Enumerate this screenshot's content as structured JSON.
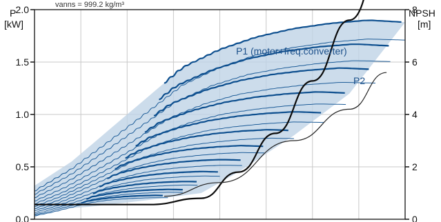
{
  "chart_data": {
    "type": "line",
    "top_note": "ᴠanns = 999.2 kg/m³",
    "left_axis": {
      "label_line1": "P",
      "label_line2": "[kW]",
      "ticks": [
        "0.0",
        "0.5",
        "1.0",
        "1.5",
        "2.0"
      ],
      "ylim": [
        0,
        2.0
      ]
    },
    "right_axis": {
      "label_line1": "NPSH",
      "label_line2": "[m]",
      "ticks": [
        "0",
        "2",
        "4",
        "6",
        "8"
      ],
      "ylim": [
        0,
        8
      ]
    },
    "grid": true,
    "annotations": {
      "p1": "P1 (motor+freq.converter)",
      "p2": "P2"
    },
    "colors": {
      "dark_curve": "#0c4e8e",
      "thin_curve": "#1d5c98",
      "band_fill": "#bfd3e6",
      "npsh": "#0a0a0a"
    },
    "p1_max_series": [
      [
        0,
        0.32
      ],
      [
        0.1,
        0.55
      ],
      [
        0.2,
        0.85
      ],
      [
        0.3,
        1.15
      ],
      [
        0.4,
        1.45
      ],
      [
        0.5,
        1.62
      ],
      [
        0.6,
        1.74
      ],
      [
        0.7,
        1.82
      ],
      [
        0.8,
        1.87
      ],
      [
        0.9,
        1.9
      ],
      [
        1.0,
        1.88
      ]
    ],
    "p2_max_series": [
      [
        0,
        0.27
      ],
      [
        0.1,
        0.48
      ],
      [
        0.2,
        0.74
      ],
      [
        0.3,
        1.01
      ],
      [
        0.4,
        1.28
      ],
      [
        0.5,
        1.45
      ],
      [
        0.6,
        1.57
      ],
      [
        0.7,
        1.64
      ],
      [
        0.8,
        1.69
      ],
      [
        0.9,
        1.72
      ],
      [
        1.0,
        1.71
      ]
    ],
    "npsh_series": [
      [
        0.31,
        0.14
      ],
      [
        0.45,
        0.2
      ],
      [
        0.55,
        0.45
      ],
      [
        0.65,
        0.82
      ],
      [
        0.75,
        1.32
      ],
      [
        0.85,
        1.9
      ],
      [
        0.95,
        2.6
      ],
      [
        1.0,
        2.92
      ]
    ]
  }
}
